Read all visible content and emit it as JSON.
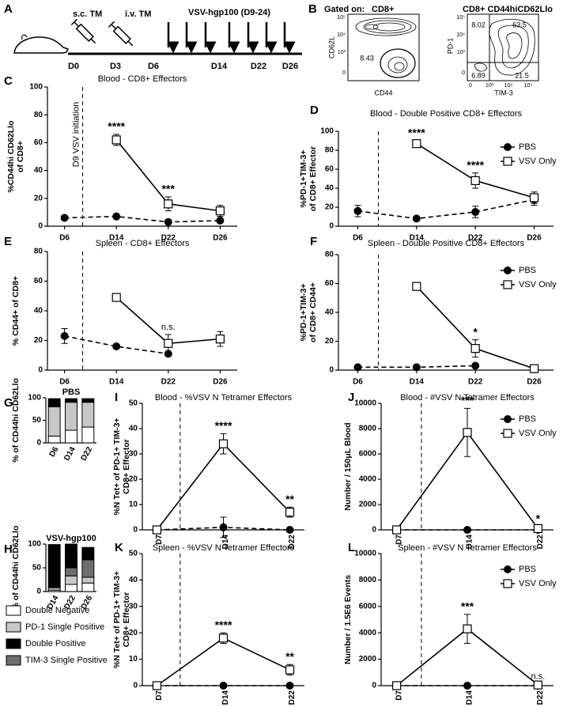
{
  "timeline": {
    "panel": "A",
    "injections": [
      "s.c. TM",
      "i.v. TM"
    ],
    "treatment": "VSV-hgp100 (D9-24)",
    "days": [
      "D0",
      "D3",
      "D6",
      "D14",
      "D22",
      "D26"
    ]
  },
  "flow": {
    "panel": "B",
    "gate_label": "Gated on:",
    "plots": [
      {
        "gate": "CD8+",
        "x_label": "CD44",
        "y_label": "CD62L",
        "y_ticks": [
          "10⁵",
          "10⁴",
          "10³",
          "0"
        ],
        "values": [
          8.43
        ]
      },
      {
        "gate": "CD8+ CD44hiCD62Llo",
        "x_label": "TIM-3",
        "y_label": "PD-1",
        "y_ticks": [
          "10⁵",
          "10⁴",
          "10³",
          "0"
        ],
        "x_ticks": [
          "0",
          "10³",
          "10⁴",
          "10⁵"
        ],
        "values": [
          8.02,
          63.5,
          6.89,
          21.5
        ]
      }
    ]
  },
  "chart_data": [
    {
      "panel": "C",
      "type": "line",
      "title": "Blood - CD8+ Effectors",
      "y_label": [
        "%CD44hi CD62Llo",
        "of CD8+"
      ],
      "categories": [
        "D6",
        "D14",
        "D22",
        "D26"
      ],
      "ylim": [
        0,
        100
      ],
      "yticks": [
        0,
        20,
        40,
        60,
        80,
        100
      ],
      "vline": true,
      "vline_label": "D9 VSV initiation",
      "series": [
        {
          "color": "#000000",
          "marker": "circle",
          "dashed": true,
          "values": [
            6,
            7,
            3,
            4
          ],
          "errors": [
            1,
            1,
            1,
            1
          ]
        },
        {
          "color": "#000000",
          "marker": "square",
          "dashed": false,
          "values": [
            null,
            62,
            16,
            11
          ],
          "errors": [
            null,
            4,
            5,
            4
          ]
        }
      ],
      "annotations": [
        {
          "text": "****",
          "category": "D14"
        },
        {
          "text": "***",
          "category": "D22"
        }
      ]
    },
    {
      "panel": "D",
      "type": "line",
      "title": "Blood - Double Positive CD8+ Effectors",
      "y_label": [
        "%PD-1+TIM-3+",
        "of CD8+ Effector"
      ],
      "categories": [
        "D6",
        "D14",
        "D22",
        "D26"
      ],
      "ylim": [
        0,
        100
      ],
      "yticks": [
        0,
        20,
        40,
        60,
        80,
        100
      ],
      "vline": true,
      "legend": "upper right",
      "series": [
        {
          "name": "PBS",
          "color": "#000000",
          "marker": "circle",
          "dashed": true,
          "values": [
            16,
            8,
            15,
            28
          ],
          "errors": [
            6,
            2,
            6,
            6
          ]
        },
        {
          "name": "VSV Only",
          "color": "#000000",
          "marker": "square",
          "dashed": false,
          "values": [
            null,
            87,
            48,
            30
          ],
          "errors": [
            null,
            3,
            8,
            6
          ]
        }
      ],
      "annotations": [
        {
          "text": "****",
          "category": "D14"
        },
        {
          "text": "****",
          "category": "D22"
        }
      ]
    },
    {
      "panel": "E",
      "type": "line",
      "title": "Spleen - CD8+ Effectors",
      "y_label": [
        "% CD44+ of CD8+"
      ],
      "categories": [
        "D6",
        "D14",
        "D22",
        "D26"
      ],
      "ylim": [
        0,
        80
      ],
      "yticks": [
        0,
        20,
        40,
        60,
        80
      ],
      "vline": true,
      "series": [
        {
          "color": "#000000",
          "marker": "circle",
          "dashed": true,
          "values": [
            23,
            16,
            11,
            null
          ],
          "errors": [
            5,
            1,
            1,
            null
          ]
        },
        {
          "color": "#000000",
          "marker": "square",
          "dashed": false,
          "values": [
            null,
            49,
            18,
            21
          ],
          "errors": [
            null,
            2,
            6,
            5
          ]
        }
      ],
      "annotations": [
        {
          "text": "n.s.",
          "category": "D22"
        }
      ]
    },
    {
      "panel": "F",
      "type": "line",
      "title": "Spleen - Double Positive CD8+ Effectors",
      "y_label": [
        "%PD-1+TIM-3+",
        "of CD8+ CD44+"
      ],
      "categories": [
        "D6",
        "D14",
        "D22",
        "D26"
      ],
      "ylim": [
        0,
        80
      ],
      "yticks": [
        0,
        20,
        40,
        60,
        80
      ],
      "vline": true,
      "legend": "upper right",
      "series": [
        {
          "name": "PBS",
          "color": "#000000",
          "marker": "circle",
          "dashed": true,
          "values": [
            2,
            2,
            3,
            null
          ],
          "errors": [
            1,
            1,
            1,
            null
          ]
        },
        {
          "name": "VSV Only",
          "color": "#000000",
          "marker": "square",
          "dashed": false,
          "values": [
            null,
            58,
            15,
            1
          ],
          "errors": [
            null,
            2,
            6,
            1
          ]
        }
      ],
      "annotations": [
        {
          "text": "*",
          "category": "D22"
        }
      ]
    },
    {
      "panel": "G",
      "type": "stacked_bar",
      "title": "PBS",
      "y_label": [
        "% of CD44hi CD62Llo"
      ],
      "categories": [
        "D6",
        "D14",
        "D22"
      ],
      "ylim": [
        0,
        100
      ],
      "yticks": [
        0,
        50,
        100
      ],
      "series": [
        {
          "color": "#ffffff",
          "values": [
            15,
            28,
            35
          ]
        },
        {
          "color": "#c8c8c8",
          "values": [
            65,
            62,
            55
          ]
        },
        {
          "color": "#000000",
          "values": [
            17,
            6,
            7
          ]
        },
        {
          "color": "#6e6e6e",
          "values": [
            1,
            2,
            1
          ]
        }
      ]
    },
    {
      "panel": "H",
      "type": "stacked_bar",
      "title": "VSV-hgp100",
      "y_label": [
        "% of CD44hi CD62Llo"
      ],
      "categories": [
        "D14",
        "D22",
        "D26"
      ],
      "ylim": [
        0,
        100
      ],
      "yticks": [
        0,
        50,
        100
      ],
      "legend": "below",
      "series": [
        {
          "name": "Double Negative",
          "color": "#ffffff",
          "values": [
            3,
            15,
            18
          ]
        },
        {
          "name": "PD-1 Single Positive",
          "color": "#c8c8c8",
          "values": [
            5,
            18,
            12
          ]
        },
        {
          "name": "Double Positive",
          "color": "#000000",
          "values": [
            89,
            50,
            26
          ]
        },
        {
          "name": "TIM-3 Single Positive",
          "color": "#6e6e6e",
          "values": [
            2,
            17,
            37
          ]
        }
      ]
    },
    {
      "panel": "I",
      "type": "line",
      "title": "Blood - %VSV N Tetramer Effectors",
      "y_label": [
        "%N Tet+ of PD-1+ TIM-3+",
        "CD8+ Effector"
      ],
      "categories": [
        "D7",
        "D14",
        "D22"
      ],
      "ylim": [
        0,
        50
      ],
      "yticks": [
        0,
        10,
        20,
        30,
        40,
        50
      ],
      "vline": true,
      "series": [
        {
          "color": "#000000",
          "marker": "circle",
          "dashed": true,
          "values": [
            0,
            1,
            0
          ],
          "errors": [
            0.3,
            4,
            0.3
          ]
        },
        {
          "color": "#000000",
          "marker": "square",
          "dashed": false,
          "values": [
            0,
            34,
            7
          ],
          "errors": [
            0.3,
            4,
            2
          ]
        }
      ],
      "annotations": [
        {
          "text": "****",
          "category": "D14"
        },
        {
          "text": "**",
          "category": "D22"
        }
      ]
    },
    {
      "panel": "J",
      "type": "line",
      "title": "Blood - #VSV N Tetramer Effectors",
      "y_label": [
        "Number / 150μL Blood"
      ],
      "categories": [
        "D7",
        "D14",
        "D22"
      ],
      "ylim": [
        0,
        10000
      ],
      "yticks": [
        0,
        2000,
        4000,
        6000,
        8000,
        10000
      ],
      "vline": true,
      "legend": "upper right",
      "series": [
        {
          "name": "PBS",
          "color": "#000000",
          "marker": "circle",
          "dashed": true,
          "values": [
            0,
            0,
            0
          ],
          "errors": [
            0,
            0,
            0
          ]
        },
        {
          "name": "VSV Only",
          "color": "#000000",
          "marker": "square",
          "dashed": false,
          "values": [
            0,
            7700,
            100
          ],
          "errors": [
            0,
            1900,
            150
          ]
        }
      ],
      "annotations": [
        {
          "text": "***",
          "category": "D14"
        },
        {
          "text": "*",
          "category": "D22"
        }
      ]
    },
    {
      "panel": "K",
      "type": "line",
      "title": "Spleen - %VSV N Tetramer Effectors",
      "y_label": [
        "%N Tet+ of PD-1+ TIM-3+",
        "CD8+ Effector"
      ],
      "categories": [
        "D7",
        "D14",
        "D22"
      ],
      "ylim": [
        0,
        50
      ],
      "yticks": [
        0,
        10,
        20,
        30,
        40,
        50
      ],
      "vline": true,
      "series": [
        {
          "color": "#000000",
          "marker": "circle",
          "dashed": true,
          "values": [
            0,
            0,
            0
          ],
          "errors": [
            0.3,
            0.3,
            0.3
          ]
        },
        {
          "color": "#000000",
          "marker": "square",
          "dashed": false,
          "values": [
            0,
            18,
            6
          ],
          "errors": [
            0.3,
            2,
            2
          ]
        }
      ],
      "annotations": [
        {
          "text": "****",
          "category": "D14"
        },
        {
          "text": "**",
          "category": "D22"
        }
      ]
    },
    {
      "panel": "L",
      "type": "line",
      "title": "Spleen - #VSV N Tetramer Effectors",
      "y_label": [
        "Number / 1.5E6 Events"
      ],
      "categories": [
        "D7",
        "D14",
        "D22"
      ],
      "ylim": [
        0,
        10000
      ],
      "yticks": [
        0,
        2000,
        4000,
        6000,
        8000,
        10000
      ],
      "vline": true,
      "legend": "upper right",
      "series": [
        {
          "name": "PBS",
          "color": "#000000",
          "marker": "circle",
          "dashed": true,
          "values": [
            0,
            0,
            0
          ],
          "errors": [
            0,
            0,
            0
          ]
        },
        {
          "name": "VSV Only",
          "color": "#000000",
          "marker": "square",
          "dashed": false,
          "values": [
            0,
            4300,
            50
          ],
          "errors": [
            0,
            1100,
            100
          ]
        }
      ],
      "annotations": [
        {
          "text": "***",
          "category": "D14"
        },
        {
          "text": "n.s.",
          "category": "D22"
        }
      ]
    }
  ]
}
